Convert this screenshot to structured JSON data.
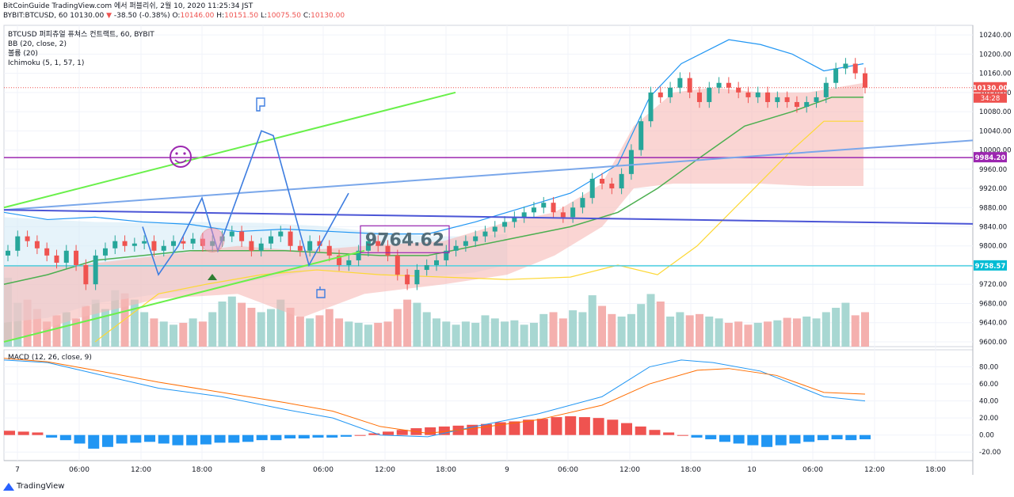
{
  "header": {
    "line1": "BitCoinGuide TradingView.com 에서 퍼블리쉬, 2월 10, 2020 11:25:34 JST",
    "symbol": "BYBIT:BTCUSD, 60",
    "last": "10130.00",
    "change": "-38.50 (-0.38%)",
    "o_label": "O:",
    "o": "10146.00",
    "h_label": "H:",
    "h": "10151.50",
    "l_label": "L:",
    "l": "10075.50",
    "c_label": "C:",
    "c": "10130.00"
  },
  "indicators": {
    "title": "BTCUSD 퍼피츄얼 퓨쳐스 컨트랙트, 60, BYBIT",
    "bb": "BB (20, close, 2)",
    "volume": "볼륨 (20)",
    "ichimoku": "Ichimoku (5, 1, 57, 1)",
    "macd": "MACD (12, 26, close, 9)"
  },
  "branding": {
    "name": "TradingView"
  },
  "colors": {
    "up": "#26a69a",
    "down": "#ef5350",
    "bb": "#2196f3",
    "ma": "#4caf50",
    "cloud": "#f6b9b6",
    "cloud_blue": "#d6ebf7"
  },
  "chart_data": [
    {
      "type": "candlestick",
      "title": "BTCUSD 퍼피츄얼 퓨쳐스 컨트랙트, 60, BYBIT",
      "ylim": [
        9590,
        10260
      ],
      "y_ticks": [
        "10240.00",
        "10200.00",
        "10160.00",
        "10120.00",
        "10080.00",
        "10040.00",
        "10000.00",
        "9960.00",
        "9920.00",
        "9880.00",
        "9840.00",
        "9800.00",
        "9760.00",
        "9720.00",
        "9680.00",
        "9640.00",
        "9600.00"
      ],
      "x_ticks": [
        "7",
        "06:00",
        "12:00",
        "18:00",
        "8",
        "06:00",
        "12:00",
        "18:00",
        "9",
        "06:00",
        "12:00",
        "18:00",
        "10",
        "06:00",
        "12:00",
        "18:00"
      ],
      "price_labels": [
        {
          "value": 10130.0,
          "text": "10130.00",
          "sub": "34:28",
          "color": "#ef5350"
        },
        {
          "value": 9984.2,
          "text": "9984.20",
          "color": "#9c27b0"
        },
        {
          "value": 9758.57,
          "text": "9758.57",
          "color": "#00bcd4"
        }
      ],
      "annotation": "9764.62",
      "closes": [
        9790,
        9820,
        9810,
        9795,
        9780,
        9765,
        9790,
        9760,
        9720,
        9780,
        9795,
        9810,
        9800,
        9805,
        9810,
        9790,
        9800,
        9810,
        9805,
        9815,
        9800,
        9810,
        9820,
        9830,
        9810,
        9790,
        9805,
        9820,
        9830,
        9800,
        9790,
        9810,
        9800,
        9780,
        9760,
        9770,
        9790,
        9810,
        9800,
        9780,
        9740,
        9720,
        9750,
        9760,
        9770,
        9790,
        9800,
        9810,
        9820,
        9830,
        9840,
        9850,
        9860,
        9870,
        9880,
        9890,
        9870,
        9860,
        9880,
        9900,
        9940,
        9930,
        9920,
        9950,
        10000,
        10060,
        10120,
        10110,
        10130,
        10150,
        10120,
        10100,
        10130,
        10140,
        10130,
        10120,
        10110,
        10120,
        10100,
        10110,
        10100,
        10090,
        10100,
        10110,
        10140,
        10170,
        10180,
        10160,
        10130
      ],
      "volume": [
        110,
        70,
        75,
        60,
        40,
        50,
        55,
        45,
        65,
        75,
        60,
        90,
        85,
        75,
        55,
        45,
        40,
        35,
        38,
        45,
        40,
        55,
        72,
        80,
        70,
        62,
        55,
        60,
        75,
        62,
        48,
        45,
        50,
        60,
        45,
        40,
        38,
        35,
        38,
        40,
        60,
        75,
        70,
        55,
        45,
        40,
        35,
        40,
        38,
        50,
        45,
        40,
        42,
        35,
        38,
        52,
        55,
        45,
        58,
        55,
        82,
        65,
        52,
        48,
        52,
        68,
        84,
        72,
        48,
        55,
        50,
        52,
        48,
        45,
        38,
        40,
        35,
        38,
        40,
        42,
        46,
        45,
        48,
        45,
        55,
        62,
        70,
        50,
        55
      ],
      "volume_up_index": [
        4,
        8,
        16,
        20,
        22,
        24,
        30,
        33,
        40,
        44,
        48,
        50,
        52,
        54,
        60,
        64,
        66,
        68,
        70,
        74
      ],
      "macd_hist": [
        5,
        4,
        3,
        -3,
        -6,
        -10,
        -16,
        -14,
        -10,
        -9,
        -8,
        -10,
        -12,
        -12,
        -11,
        -9,
        -9,
        -8,
        -6,
        -6,
        -4,
        -4,
        -3,
        -3,
        -2,
        0,
        2,
        4,
        6,
        8,
        9,
        10,
        11,
        12,
        13,
        15,
        16,
        18,
        19,
        21,
        22,
        21,
        20,
        18,
        14,
        10,
        6,
        3,
        0,
        -3,
        -5,
        -8,
        -10,
        -12,
        -14,
        -12,
        -10,
        -8,
        -6,
        -5,
        -6,
        -5
      ],
      "macd_ylim": [
        -30,
        100
      ],
      "macd_ticks": [
        "80.00",
        "60.00",
        "40.00",
        "20.00",
        "0.00",
        "-20.00"
      ]
    }
  ]
}
